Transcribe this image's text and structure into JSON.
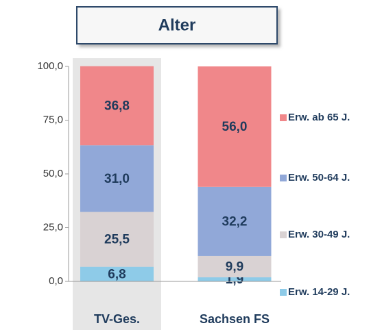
{
  "chart_data": {
    "type": "stacked_bar",
    "title": "Alter",
    "categories": [
      "TV-Ges.",
      "Sachsen FS"
    ],
    "series": [
      {
        "name": "Erw. 14-29 J.",
        "color": "#8ecbe8",
        "values": [
          6.8,
          1.9
        ],
        "value_labels": [
          "6,8",
          "1,9"
        ]
      },
      {
        "name": "Erw. 30-49 J.",
        "color": "#d9d2d3",
        "values": [
          25.5,
          9.9
        ],
        "value_labels": [
          "25,5",
          "9,9"
        ]
      },
      {
        "name": "Erw. 50-64 J.",
        "color": "#91a8d8",
        "values": [
          31.0,
          32.2
        ],
        "value_labels": [
          "31,0",
          "32,2"
        ]
      },
      {
        "name": "Erw. ab 65 J.",
        "color": "#f0878a",
        "values": [
          36.8,
          56.0
        ],
        "value_labels": [
          "36,8",
          "56,0"
        ]
      }
    ],
    "ylim": [
      0,
      100
    ],
    "yticks": [
      {
        "value": 0,
        "label": "0,0"
      },
      {
        "value": 25,
        "label": "25,0"
      },
      {
        "value": 50,
        "label": "50,0"
      },
      {
        "value": 75,
        "label": "75,0"
      },
      {
        "value": 100,
        "label": "100,0"
      }
    ],
    "legend": "right"
  }
}
